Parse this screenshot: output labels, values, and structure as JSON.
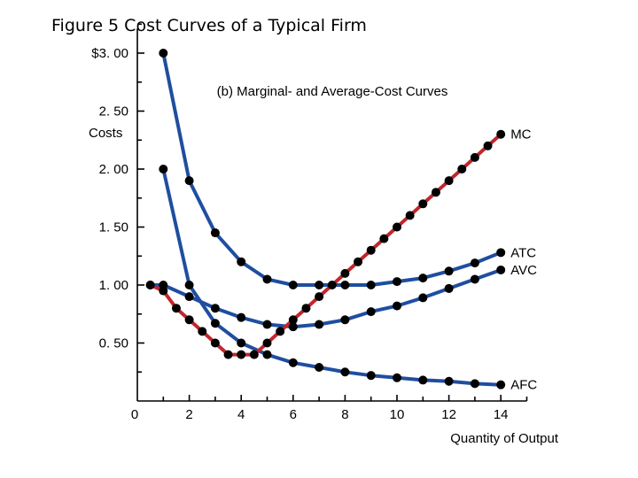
{
  "figure_title": "Figure 5 Cost Curves of a Typical Firm",
  "chart_data": {
    "type": "line",
    "title": "(b) Marginal- and Average-Cost Curves",
    "ylabel": "Costs",
    "xlabel": "Quantity of Output",
    "xlim": [
      0,
      15
    ],
    "ylim": [
      0,
      3.25
    ],
    "x_ticks": [
      0,
      2,
      4,
      6,
      8,
      10,
      12,
      14
    ],
    "x_tick_labels": [
      "0",
      "2",
      "4",
      "6",
      "8",
      "10",
      "12",
      "14"
    ],
    "y_ticks": [
      0.5,
      1.0,
      1.5,
      2.0,
      2.5,
      3.0
    ],
    "y_tick_labels": [
      "0. 50",
      "1. 00",
      "1. 50",
      "2. 00",
      "2. 50",
      "$3. 00"
    ],
    "series": [
      {
        "name": "MC",
        "color": "#c0272d",
        "x": [
          0.5,
          1,
          1.5,
          2,
          2.5,
          3,
          3.5,
          4,
          4.5,
          5,
          5.5,
          6,
          6.5,
          7,
          7.5,
          8,
          8.5,
          9,
          9.5,
          10,
          10.5,
          11,
          11.5,
          12,
          12.5,
          13,
          13.5,
          14
        ],
        "values": [
          1.0,
          0.95,
          0.8,
          0.7,
          0.6,
          0.5,
          0.4,
          0.4,
          0.4,
          0.5,
          0.6,
          0.7,
          0.8,
          0.9,
          1.0,
          1.1,
          1.2,
          1.3,
          1.4,
          1.5,
          1.6,
          1.7,
          1.8,
          1.9,
          2.0,
          2.1,
          2.2,
          2.3
        ]
      },
      {
        "name": "ATC",
        "color": "#1f4ea0",
        "x": [
          1,
          2,
          3,
          4,
          5,
          6,
          7,
          8,
          9,
          10,
          11,
          12,
          13,
          14
        ],
        "values": [
          3.0,
          1.9,
          1.45,
          1.2,
          1.05,
          1.0,
          1.0,
          1.0,
          1.0,
          1.03,
          1.06,
          1.12,
          1.19,
          1.28
        ]
      },
      {
        "name": "AVC",
        "color": "#1f4ea0",
        "x": [
          0.5,
          1,
          2,
          3,
          4,
          5,
          6,
          7,
          8,
          9,
          10,
          11,
          12,
          13,
          14
        ],
        "values": [
          1.0,
          1.0,
          0.9,
          0.8,
          0.72,
          0.66,
          0.64,
          0.66,
          0.7,
          0.77,
          0.82,
          0.89,
          0.97,
          1.05,
          1.13
        ]
      },
      {
        "name": "AFC",
        "color": "#1f4ea0",
        "x": [
          1,
          2,
          3,
          4,
          5,
          6,
          7,
          8,
          9,
          10,
          11,
          12,
          13,
          14
        ],
        "values": [
          2.0,
          1.0,
          0.67,
          0.5,
          0.4,
          0.33,
          0.29,
          0.25,
          0.22,
          0.2,
          0.18,
          0.17,
          0.15,
          0.14
        ]
      }
    ]
  }
}
